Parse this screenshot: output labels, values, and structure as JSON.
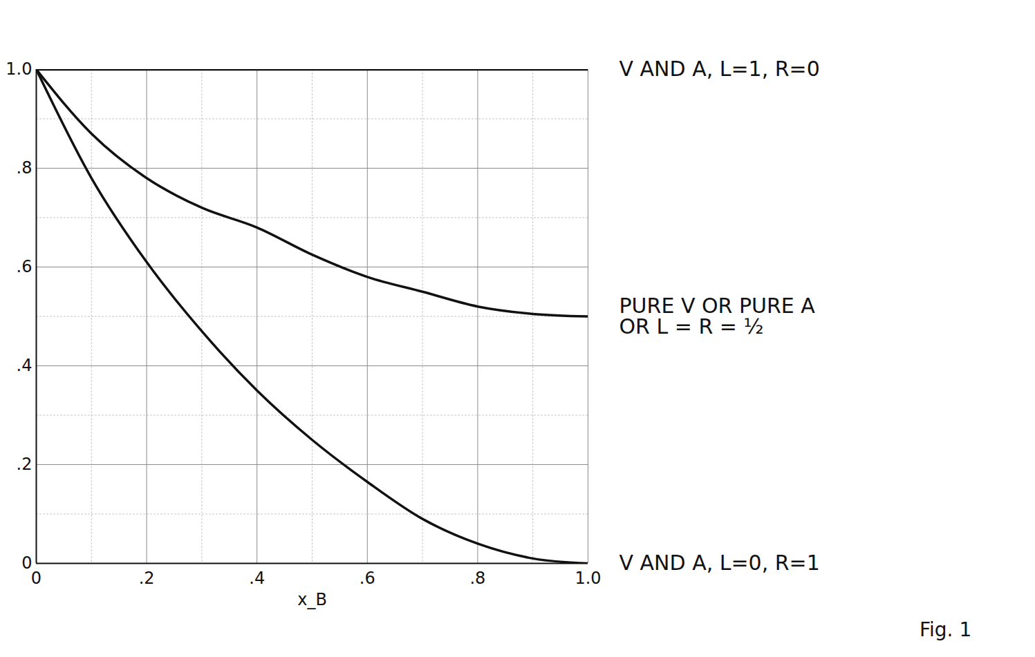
{
  "chart_data": {
    "type": "line",
    "caption": "Fig. 1",
    "x_label": "x_B",
    "x": [
      0,
      0.1,
      0.2,
      0.3,
      0.4,
      0.5,
      0.6,
      0.7,
      0.8,
      0.9,
      1.0
    ],
    "series": [
      {
        "name": "V AND A, L=1, R=0",
        "color": "#111111",
        "line_style": "solid",
        "values": [
          1.0,
          1.0,
          1.0,
          1.0,
          1.0,
          1.0,
          1.0,
          1.0,
          1.0,
          1.0,
          1.0
        ]
      },
      {
        "name": "PURE V OR PURE A\nOR L = R = ½",
        "color": "#111111",
        "line_style": "solid",
        "values": [
          1.0,
          0.87,
          0.78,
          0.72,
          0.68,
          0.625,
          0.58,
          0.55,
          0.52,
          0.505,
          0.5
        ]
      },
      {
        "name": "V AND A, L=0, R=1",
        "color": "#111111",
        "line_style": "solid",
        "values": [
          1.0,
          0.78,
          0.61,
          0.47,
          0.35,
          0.25,
          0.165,
          0.09,
          0.04,
          0.01,
          0.0
        ]
      }
    ],
    "xlim": [
      0,
      1.0
    ],
    "ylim": [
      0,
      1.0
    ],
    "xticks": [
      0,
      {
        "value": 0.2,
        "label": ".2"
      },
      {
        "value": 0.4,
        "label": ".4"
      },
      {
        "value": 0.6,
        "label": ".6"
      },
      {
        "value": 0.8,
        "label": ".8"
      },
      {
        "value": 1.0,
        "label": "1.0"
      }
    ],
    "yticks": [
      0,
      {
        "value": 0.2,
        "label": ".2"
      },
      {
        "value": 0.4,
        "label": ".4"
      },
      {
        "value": 0.6,
        "label": ".6"
      },
      {
        "value": 0.8,
        "label": ".8"
      },
      {
        "value": 1.0,
        "label": "1.0"
      }
    ],
    "grid": true
  }
}
